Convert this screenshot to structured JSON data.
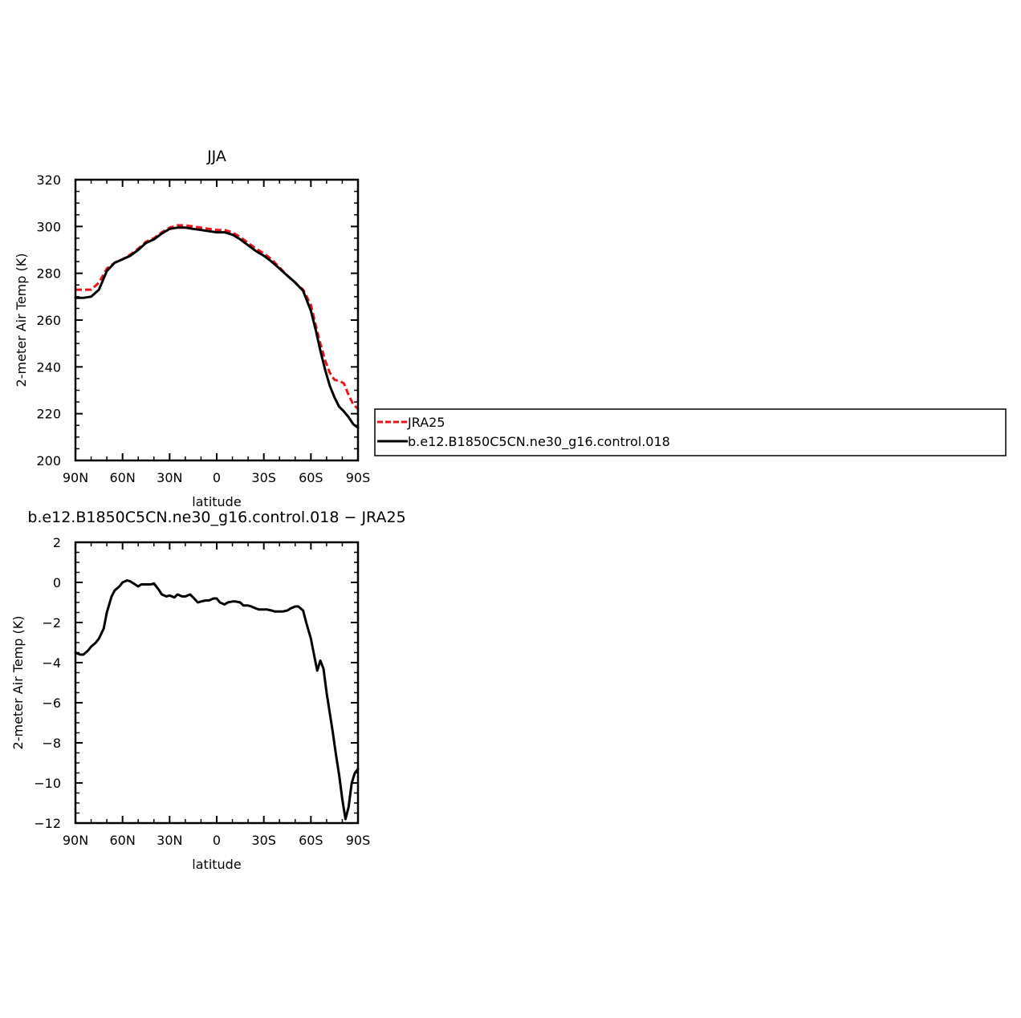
{
  "chart_data": [
    {
      "type": "line",
      "title": "JJA",
      "xlabel": "latitude",
      "ylabel": "2-meter Air Temp (K)",
      "xlim": [
        90,
        -90
      ],
      "ylim": [
        200,
        320
      ],
      "xticks": [
        {
          "value": 90,
          "label": "90N"
        },
        {
          "value": 60,
          "label": "60N"
        },
        {
          "value": 30,
          "label": "30N"
        },
        {
          "value": 0,
          "label": "0"
        },
        {
          "value": -30,
          "label": "30S"
        },
        {
          "value": -60,
          "label": "60S"
        },
        {
          "value": -90,
          "label": "90S"
        }
      ],
      "yticks": [
        {
          "value": 200,
          "label": "200"
        },
        {
          "value": 220,
          "label": "220"
        },
        {
          "value": 240,
          "label": "240"
        },
        {
          "value": 260,
          "label": "260"
        },
        {
          "value": 280,
          "label": "280"
        },
        {
          "value": 300,
          "label": "300"
        },
        {
          "value": 320,
          "label": "320"
        }
      ],
      "legend": {
        "placement": "right",
        "entries": [
          {
            "name": "JRA25",
            "color": "#e8141b",
            "dash": "dashed"
          },
          {
            "name": "b.e12.B1850C5CN.ne30_g16.control.018",
            "color": "#000000",
            "dash": "solid"
          }
        ]
      },
      "series": [
        {
          "name": "JRA25",
          "color": "#e8141b",
          "dash": "dashed",
          "x": [
            90,
            85,
            80,
            75,
            70,
            65,
            60,
            55,
            50,
            45,
            40,
            35,
            30,
            25,
            20,
            15,
            10,
            5,
            0,
            -5,
            -10,
            -15,
            -20,
            -25,
            -30,
            -35,
            -40,
            -45,
            -50,
            -55,
            -60,
            -63,
            -66,
            -69,
            -72,
            -75,
            -78,
            -81,
            -84,
            -87,
            -90
          ],
          "y": [
            273,
            273,
            273,
            276,
            282,
            284.5,
            286,
            288,
            290.5,
            293.5,
            295,
            297.5,
            299.5,
            300.5,
            300.5,
            300,
            299.5,
            299,
            298.5,
            298.5,
            297.5,
            295.5,
            293,
            290.5,
            288.5,
            286,
            282.5,
            279,
            276,
            273,
            266.5,
            258,
            250,
            243,
            237.5,
            234.5,
            234,
            233,
            228,
            224,
            222
          ]
        },
        {
          "name": "b.e12.B1850C5CN.ne30_g16.control.018",
          "color": "#000000",
          "dash": "solid",
          "x": [
            90,
            85,
            80,
            75,
            70,
            65,
            60,
            55,
            50,
            45,
            40,
            35,
            30,
            25,
            20,
            15,
            10,
            5,
            0,
            -5,
            -10,
            -15,
            -20,
            -25,
            -30,
            -35,
            -40,
            -45,
            -50,
            -55,
            -60,
            -63,
            -66,
            -69,
            -72,
            -75,
            -78,
            -81,
            -84,
            -87,
            -90
          ],
          "y": [
            269.5,
            269.5,
            270,
            273,
            281,
            284.5,
            286,
            287.5,
            290,
            293,
            294.5,
            297,
            299,
            299.5,
            299.5,
            299,
            298.5,
            298,
            297.5,
            297.5,
            296.5,
            294.5,
            292,
            289.5,
            287.5,
            285,
            282,
            279,
            276,
            272.5,
            264,
            256,
            247,
            239,
            232,
            227,
            223,
            221,
            218.5,
            215.5,
            214
          ]
        }
      ]
    },
    {
      "type": "line",
      "title": "b.e12.B1850C5CN.ne30_g16.control.018 − JRA25",
      "xlabel": "latitude",
      "ylabel": "2-meter Air Temp (K)",
      "xlim": [
        90,
        -90
      ],
      "ylim": [
        -12,
        2
      ],
      "xticks": [
        {
          "value": 90,
          "label": "90N"
        },
        {
          "value": 60,
          "label": "60N"
        },
        {
          "value": 30,
          "label": "30N"
        },
        {
          "value": 0,
          "label": "0"
        },
        {
          "value": -30,
          "label": "30S"
        },
        {
          "value": -60,
          "label": "60S"
        },
        {
          "value": -90,
          "label": "90S"
        }
      ],
      "yticks": [
        {
          "value": -12,
          "label": "−12"
        },
        {
          "value": -10,
          "label": "−10"
        },
        {
          "value": -8,
          "label": "−8"
        },
        {
          "value": -6,
          "label": "−6"
        },
        {
          "value": -4,
          "label": "−4"
        },
        {
          "value": -2,
          "label": "−2"
        },
        {
          "value": 0,
          "label": "0"
        },
        {
          "value": 2,
          "label": "2"
        }
      ],
      "series": [
        {
          "name": "",
          "color": "#000000",
          "dash": "solid",
          "x": [
            90,
            87,
            85,
            82,
            80,
            77,
            75,
            72,
            70,
            67,
            65,
            62,
            60,
            57,
            55,
            52,
            50,
            48,
            45,
            42,
            40,
            37,
            35,
            32,
            30,
            27,
            25,
            22,
            20,
            17,
            15,
            12,
            10,
            7,
            5,
            2,
            0,
            -2,
            -5,
            -7,
            -10,
            -12,
            -15,
            -17,
            -20,
            -22,
            -25,
            -27,
            -30,
            -32,
            -35,
            -37,
            -40,
            -42,
            -45,
            -47,
            -50,
            -52,
            -55,
            -57,
            -60,
            -62,
            -64,
            -66,
            -68,
            -70,
            -72,
            -74,
            -76,
            -78,
            -80,
            -82,
            -84,
            -86,
            -88,
            -90
          ],
          "y": [
            -3.5,
            -3.6,
            -3.6,
            -3.4,
            -3.2,
            -3.0,
            -2.8,
            -2.3,
            -1.5,
            -0.7,
            -0.4,
            -0.2,
            0.0,
            0.1,
            0.05,
            -0.1,
            -0.2,
            -0.1,
            -0.1,
            -0.1,
            -0.05,
            -0.35,
            -0.6,
            -0.7,
            -0.65,
            -0.75,
            -0.6,
            -0.7,
            -0.7,
            -0.6,
            -0.75,
            -1.0,
            -0.95,
            -0.9,
            -0.9,
            -0.8,
            -0.8,
            -1.0,
            -1.1,
            -1.0,
            -0.95,
            -0.95,
            -1.0,
            -1.15,
            -1.15,
            -1.2,
            -1.3,
            -1.35,
            -1.35,
            -1.35,
            -1.4,
            -1.45,
            -1.45,
            -1.45,
            -1.4,
            -1.3,
            -1.2,
            -1.2,
            -1.4,
            -2.0,
            -2.8,
            -3.6,
            -4.4,
            -3.9,
            -4.3,
            -5.5,
            -6.5,
            -7.5,
            -8.6,
            -9.6,
            -10.8,
            -11.8,
            -11.2,
            -10.0,
            -9.5,
            -9.3
          ]
        }
      ]
    }
  ]
}
